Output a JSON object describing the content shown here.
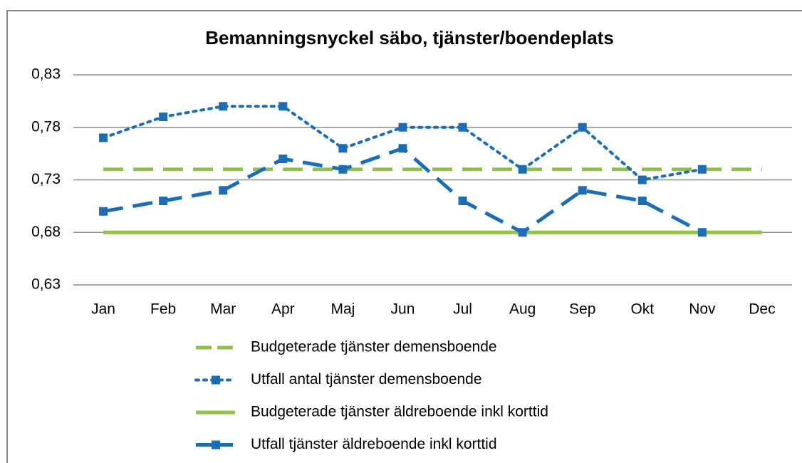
{
  "chart_data": {
    "type": "line",
    "title": "Bemanningsnyckel säbo, tjänster/boendeplats",
    "categories": [
      "Jan",
      "Feb",
      "Mar",
      "Apr",
      "Maj",
      "Jun",
      "Jul",
      "Aug",
      "Sep",
      "Okt",
      "Nov",
      "Dec"
    ],
    "series": [
      {
        "name": "Budgeterade tjänster demensboende",
        "color": "#92c04c",
        "style": "dashed",
        "marker": null,
        "values": [
          0.74,
          0.74,
          0.74,
          0.74,
          0.74,
          0.74,
          0.74,
          0.74,
          0.74,
          0.74,
          0.74,
          0.74
        ]
      },
      {
        "name": "Utfall antal tjänster demensboende",
        "color": "#1c6db5",
        "style": "dotted",
        "marker": "square",
        "values": [
          0.77,
          0.79,
          0.8,
          0.8,
          0.76,
          0.78,
          0.78,
          0.74,
          0.78,
          0.73,
          0.74,
          null
        ]
      },
      {
        "name": "Budgeterade tjänster äldreboende inkl korttid",
        "color": "#92c04c",
        "style": "solid",
        "marker": null,
        "values": [
          0.68,
          0.68,
          0.68,
          0.68,
          0.68,
          0.68,
          0.68,
          0.68,
          0.68,
          0.68,
          0.68,
          0.68
        ]
      },
      {
        "name": "Utfall tjänster äldreboende inkl korttid",
        "color": "#1c6db5",
        "style": "dashed",
        "marker": "square",
        "values": [
          0.7,
          0.71,
          0.72,
          0.75,
          0.74,
          0.76,
          0.71,
          0.68,
          0.72,
          0.71,
          0.68,
          null
        ]
      }
    ],
    "ylim": [
      0.63,
      0.83
    ],
    "yticks": [
      {
        "value": 0.63,
        "label": "0,63"
      },
      {
        "value": 0.68,
        "label": "0,68"
      },
      {
        "value": 0.73,
        "label": "0,73"
      },
      {
        "value": 0.78,
        "label": "0,78"
      },
      {
        "value": 0.83,
        "label": "0,83"
      }
    ],
    "grid": true,
    "legend": "bottom"
  }
}
